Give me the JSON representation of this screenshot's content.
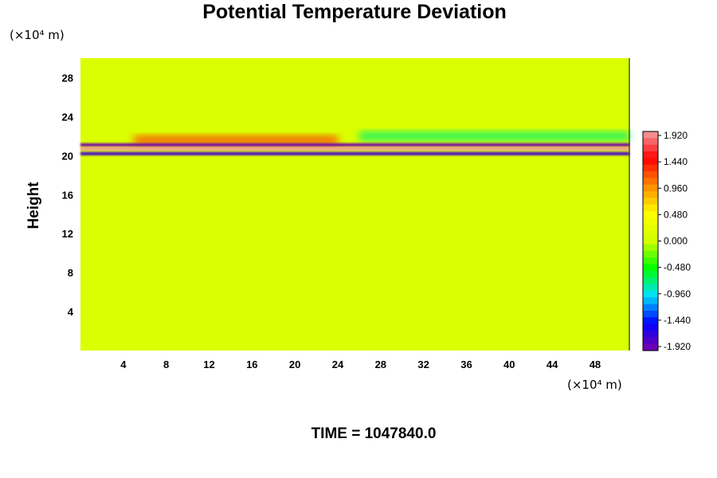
{
  "chart_data": {
    "type": "heatmap",
    "title": "Potential Temperature Deviation",
    "ylabel": "Height",
    "x_unit_label": "(×10⁴ m)",
    "y_unit_label": "(×10⁴ m)",
    "xlim": [
      0,
      51.2
    ],
    "ylim": [
      0,
      30
    ],
    "x_ticks": [
      4,
      8,
      12,
      16,
      20,
      24,
      28,
      32,
      36,
      40,
      44,
      48
    ],
    "y_ticks": [
      4,
      8,
      12,
      16,
      20,
      24,
      28
    ],
    "colorbar": {
      "min": -1.92,
      "max": 1.92,
      "levels": 33,
      "tick_labels": [
        "1.920",
        "1.440",
        "0.960",
        "0.480",
        "0.000",
        "-0.480",
        "-0.960",
        "-1.440",
        "-1.920"
      ],
      "colors": [
        "#7a00a8",
        "#0000ff",
        "#00e0ff",
        "#00ff00",
        "#d0ff00",
        "#ffff00",
        "#ff8c00",
        "#ff0000",
        "#f0a0a0"
      ]
    },
    "background_value": 0.1,
    "features": [
      {
        "name": "upper positive band",
        "x_range": [
          5,
          24
        ],
        "y_center": 21.6,
        "value": 1.2
      },
      {
        "name": "upper mixed band east",
        "x_range": [
          26,
          51.2
        ],
        "y_center": 22.0,
        "value": -0.7
      },
      {
        "name": "negative layer",
        "x_range": [
          0,
          51.2
        ],
        "y_center": 21.1,
        "value": -1.9
      },
      {
        "name": "strong positive layer",
        "x_range": [
          0,
          51.2
        ],
        "y_center": 20.7,
        "value": 1.9
      },
      {
        "name": "lower negative layer",
        "x_range": [
          0,
          51.2
        ],
        "y_center": 20.2,
        "value": -1.7
      }
    ]
  },
  "footer": {
    "time_label": "TIME = 1047840.0"
  }
}
